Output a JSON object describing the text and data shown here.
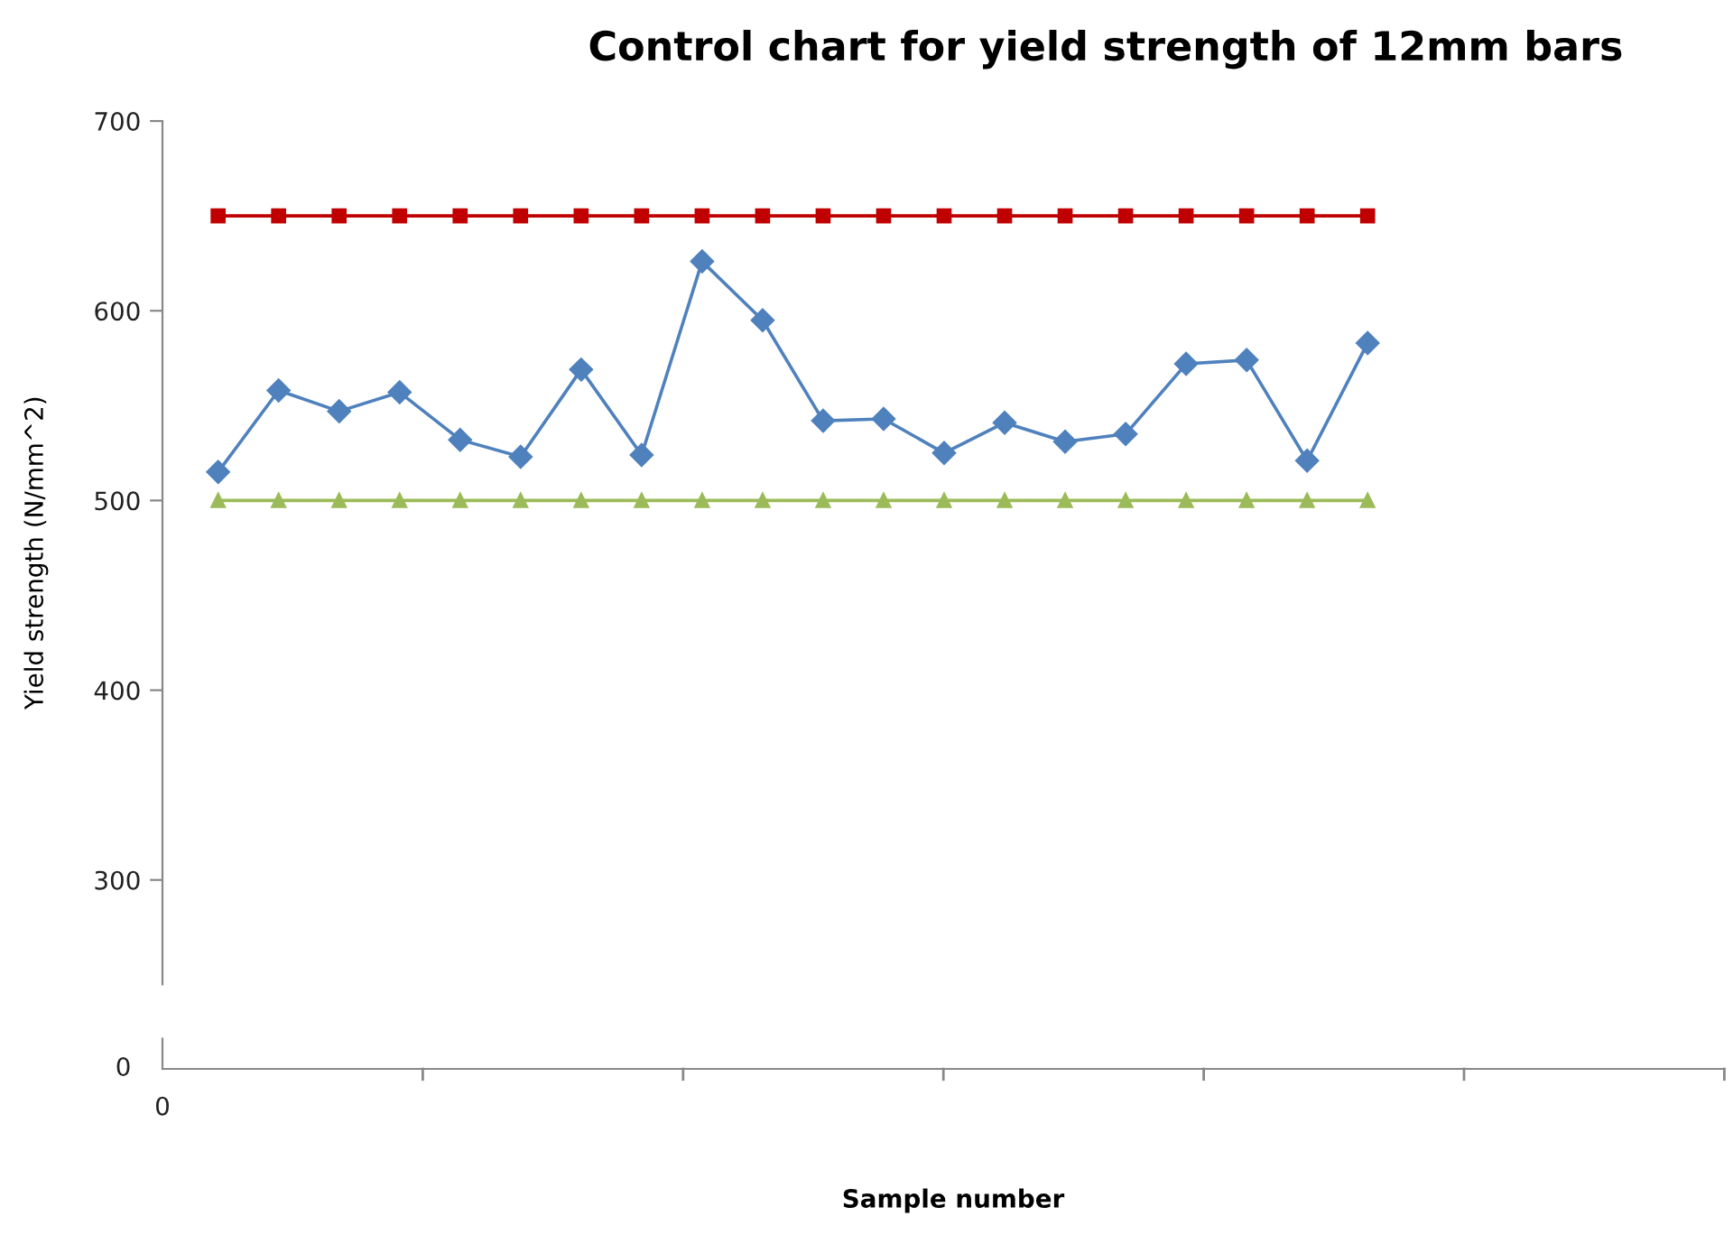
{
  "chart_data": [
    {
      "type": "line",
      "title": "Control chart for yield strength of 12mm bars",
      "ylabel": "Yield strength (N/mm^2)",
      "categories": [
        null,
        null,
        null,
        null,
        null,
        null,
        null,
        null,
        null,
        null,
        null,
        null,
        null,
        null,
        null,
        null,
        null,
        null,
        null,
        null
      ],
      "series": [
        {
          "color": "#4f81bd",
          "marker": "diamond",
          "values": [
            515,
            558,
            547,
            557,
            532,
            523,
            569,
            524,
            626,
            595,
            542,
            543,
            525,
            541,
            531,
            535,
            572,
            574,
            521,
            583
          ]
        },
        {
          "color": "#c00000",
          "marker": "square",
          "values": [
            650,
            650,
            650,
            650,
            650,
            650,
            650,
            650,
            650,
            650,
            650,
            650,
            650,
            650,
            650,
            650,
            650,
            650,
            650,
            650
          ]
        },
        {
          "color": "#9bbb59",
          "marker": "triangle",
          "values": [
            500,
            500,
            500,
            500,
            500,
            500,
            500,
            500,
            500,
            500,
            500,
            500,
            500,
            500,
            500,
            500,
            500,
            500,
            500,
            500
          ]
        }
      ],
      "ylim": [
        245,
        700
      ],
      "yticks": [
        300,
        400,
        500,
        600,
        700
      ],
      "grid": false,
      "legend": false
    },
    {
      "type": "other",
      "xlabel": "Sample number",
      "annotations": [
        "0",
        "0"
      ]
    }
  ]
}
